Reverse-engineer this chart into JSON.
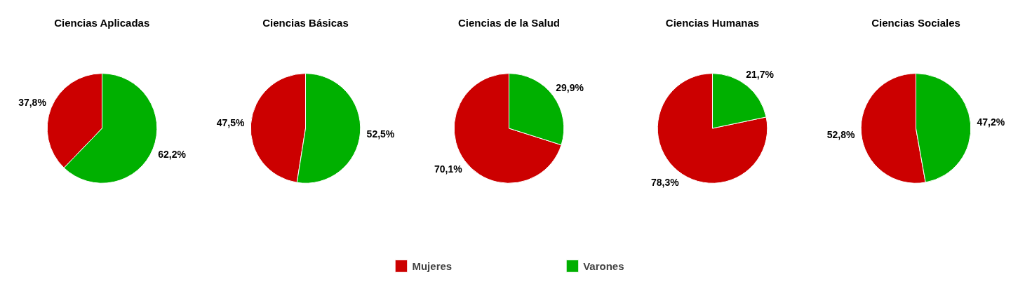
{
  "chart_data": [
    {
      "type": "pie",
      "title": "Ciencias Aplicadas",
      "categories": [
        "Mujeres",
        "Varones"
      ],
      "values": [
        37.8,
        62.2
      ],
      "colors": [
        "#cc0000",
        "#00b000"
      ],
      "value_labels": [
        "37,8%",
        "62,2%"
      ],
      "legend": "bottom"
    },
    {
      "type": "pie",
      "title": "Ciencias Básicas",
      "categories": [
        null,
        null
      ],
      "values": [
        47.5,
        52.5
      ],
      "colors": [
        "#cc0000",
        "#00b000"
      ],
      "value_labels": [
        "47,5%",
        "52,5%"
      ]
    },
    {
      "type": "pie",
      "title": "Ciencias de la Salud",
      "categories": [
        null,
        null
      ],
      "values": [
        70.1,
        29.9
      ],
      "colors": [
        "#cc0000",
        "#00b000"
      ],
      "value_labels": [
        "70,1%",
        "29,9%"
      ]
    },
    {
      "type": "pie",
      "title": "Ciencias Humanas",
      "categories": [
        null,
        null
      ],
      "values": [
        78.3,
        21.7
      ],
      "colors": [
        "#cc0000",
        "#00b000"
      ],
      "value_labels": [
        "78,3%",
        "21,7%"
      ]
    },
    {
      "type": "pie",
      "title": "Ciencias Sociales",
      "categories": [
        null,
        null
      ],
      "values": [
        52.8,
        47.2
      ],
      "colors": [
        "#cc0000",
        "#00b000"
      ],
      "value_labels": [
        "52,8%",
        "47,2%"
      ]
    }
  ]
}
